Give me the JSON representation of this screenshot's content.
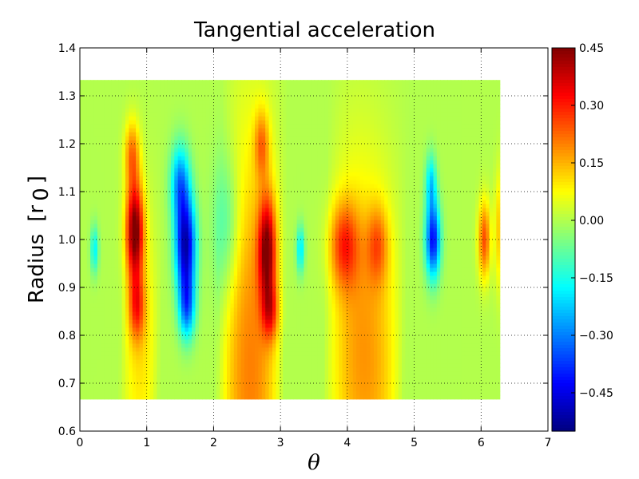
{
  "chart_data": {
    "type": "heatmap",
    "title": "Tangential acceleration",
    "xlabel": "θ",
    "ylabel": "Radius",
    "ylabel_unit": "[r",
    "ylabel_unit_sub": "0",
    "ylabel_unit_close": "]",
    "xlim": [
      0,
      7
    ],
    "ylim": [
      0.6,
      1.4
    ],
    "x_ticks": [
      "0",
      "1",
      "2",
      "3",
      "4",
      "5",
      "6",
      "7"
    ],
    "y_ticks": [
      "0.6",
      "0.7",
      "0.8",
      "0.9",
      "1.0",
      "1.1",
      "1.2",
      "1.3",
      "1.4"
    ],
    "grid": true,
    "data_extent": {
      "theta": [
        0,
        6.28
      ],
      "radius": [
        0.667,
        1.333
      ]
    },
    "colormap": "jet",
    "color_range": [
      -0.55,
      0.45
    ],
    "colorbar_ticks": [
      "0.45",
      "0.30",
      "0.15",
      "0.00",
      "−0.15",
      "−0.30",
      "−0.45"
    ],
    "colorbar_tick_values": [
      0.45,
      0.3,
      0.15,
      0.0,
      -0.15,
      -0.3,
      -0.45
    ],
    "features": [
      {
        "theta": 0.82,
        "radius": 1.02,
        "amplitude": 0.45,
        "theta_width": 0.13,
        "radius_width": 0.1
      },
      {
        "theta": 0.78,
        "radius": 1.18,
        "amplitude": 0.2,
        "theta_width": 0.11,
        "radius_width": 0.07
      },
      {
        "theta": 0.85,
        "radius": 0.86,
        "amplitude": 0.22,
        "theta_width": 0.12,
        "radius_width": 0.07
      },
      {
        "theta": 1.58,
        "radius": 0.99,
        "amplitude": -0.5,
        "theta_width": 0.15,
        "radius_width": 0.1
      },
      {
        "theta": 1.5,
        "radius": 1.12,
        "amplitude": -0.28,
        "theta_width": 0.14,
        "radius_width": 0.08
      },
      {
        "theta": 1.6,
        "radius": 0.86,
        "amplitude": -0.3,
        "theta_width": 0.12,
        "radius_width": 0.07
      },
      {
        "theta": 2.8,
        "radius": 0.98,
        "amplitude": 0.38,
        "theta_width": 0.13,
        "radius_width": 0.11
      },
      {
        "theta": 2.72,
        "radius": 1.2,
        "amplitude": 0.17,
        "theta_width": 0.11,
        "radius_width": 0.07
      },
      {
        "theta": 2.85,
        "radius": 0.85,
        "amplitude": 0.2,
        "theta_width": 0.12,
        "radius_width": 0.06
      },
      {
        "theta": 3.3,
        "radius": 0.98,
        "amplitude": -0.2,
        "theta_width": 0.06,
        "radius_width": 0.05
      },
      {
        "theta": 3.95,
        "radius": 0.99,
        "amplitude": 0.22,
        "theta_width": 0.22,
        "radius_width": 0.09
      },
      {
        "theta": 4.45,
        "radius": 0.99,
        "amplitude": 0.16,
        "theta_width": 0.16,
        "radius_width": 0.08
      },
      {
        "theta": 5.28,
        "radius": 1.0,
        "amplitude": -0.42,
        "theta_width": 0.11,
        "radius_width": 0.08
      },
      {
        "theta": 5.25,
        "radius": 1.12,
        "amplitude": -0.2,
        "theta_width": 0.08,
        "radius_width": 0.06
      },
      {
        "theta": 6.05,
        "radius": 1.0,
        "amplitude": 0.25,
        "theta_width": 0.09,
        "radius_width": 0.08
      },
      {
        "theta": 0.22,
        "radius": 0.98,
        "amplitude": -0.18,
        "theta_width": 0.06,
        "radius_width": 0.05
      },
      {
        "theta": 2.2,
        "radius": 1.03,
        "amplitude": -0.12,
        "theta_width": 0.2,
        "radius_width": 0.15
      },
      {
        "theta": 6.25,
        "radius": 1.02,
        "amplitude": 0.12,
        "theta_width": 0.05,
        "radius_width": 0.12
      }
    ],
    "streaks": [
      {
        "theta_start": 2.05,
        "radius_start": 0.78,
        "theta_end": 3.05,
        "radius_end": 0.675,
        "amplitude": 0.2
      },
      {
        "theta_start": 3.65,
        "radius_start": 0.84,
        "theta_end": 4.85,
        "radius_end": 0.68,
        "amplitude": 0.18
      },
      {
        "theta_start": 0.6,
        "radius_start": 0.82,
        "theta_end": 1.2,
        "radius_end": 0.71,
        "amplitude": 0.1
      }
    ]
  }
}
